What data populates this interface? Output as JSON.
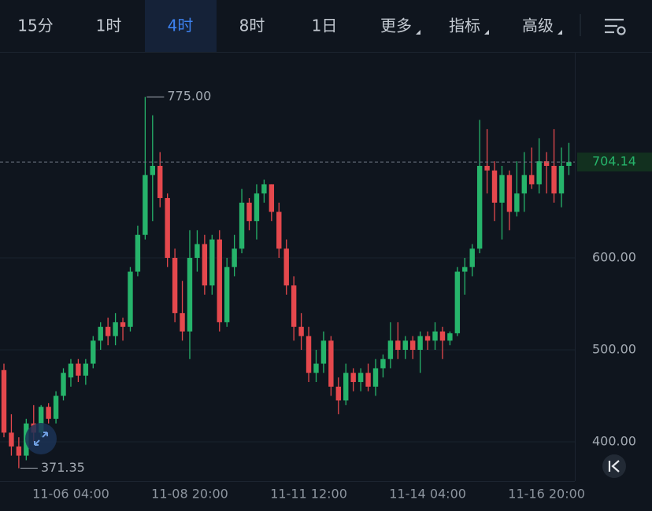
{
  "toolbar": {
    "tabs": [
      {
        "label": "15分",
        "dropdown": false
      },
      {
        "label": "1时",
        "dropdown": false
      },
      {
        "label": "4时",
        "dropdown": false
      },
      {
        "label": "8时",
        "dropdown": false
      },
      {
        "label": "1日",
        "dropdown": false
      },
      {
        "label": "更多",
        "dropdown": true
      },
      {
        "label": "指标",
        "dropdown": true
      },
      {
        "label": "高级",
        "dropdown": true
      }
    ],
    "active": 2
  },
  "chart_data": {
    "type": "candlestick",
    "categories": [
      null,
      null,
      null,
      null,
      null,
      null,
      null,
      null,
      null,
      "11-06 04:00",
      null,
      null,
      null,
      null,
      null,
      null,
      null,
      null,
      null,
      null,
      null,
      null,
      null,
      null,
      null,
      "11-08 20:00",
      null,
      null,
      null,
      null,
      null,
      null,
      null,
      null,
      null,
      null,
      null,
      null,
      null,
      null,
      null,
      "11-11 12:00",
      null,
      null,
      null,
      null,
      null,
      null,
      null,
      null,
      null,
      null,
      null,
      null,
      null,
      null,
      null,
      "11-14 04:00",
      null,
      null,
      null,
      null,
      null,
      null,
      null,
      null,
      null,
      null,
      null,
      null,
      null,
      null,
      null,
      "11-16 20:00",
      null,
      null,
      null
    ],
    "open": [
      478,
      410,
      395,
      385,
      420,
      410,
      438,
      425,
      450,
      470,
      485,
      472,
      485,
      510,
      525,
      515,
      530,
      525,
      585,
      625,
      690,
      700,
      665,
      600,
      540,
      520,
      600,
      615,
      570,
      620,
      530,
      590,
      610,
      660,
      640,
      670,
      680,
      650,
      610,
      570,
      525,
      515,
      475,
      485,
      510,
      460,
      445,
      475,
      465,
      475,
      460,
      480,
      490,
      510,
      500,
      510,
      500,
      515,
      510,
      520,
      510,
      518,
      585,
      590,
      610,
      700,
      695,
      660,
      690,
      650,
      670,
      690,
      680,
      705,
      700,
      670,
      700
    ],
    "high": [
      485,
      430,
      405,
      425,
      440,
      440,
      442,
      455,
      480,
      490,
      490,
      490,
      515,
      530,
      535,
      540,
      535,
      590,
      635,
      775,
      755,
      715,
      670,
      610,
      575,
      630,
      630,
      625,
      625,
      630,
      600,
      625,
      675,
      665,
      680,
      685,
      680,
      660,
      620,
      580,
      540,
      525,
      500,
      520,
      515,
      470,
      485,
      480,
      480,
      485,
      490,
      495,
      530,
      530,
      515,
      515,
      520,
      520,
      530,
      525,
      520,
      590,
      600,
      615,
      750,
      740,
      705,
      700,
      695,
      705,
      715,
      720,
      730,
      715,
      740,
      720,
      725
    ],
    "low": [
      405,
      385,
      371.35,
      380,
      400,
      405,
      420,
      420,
      445,
      460,
      465,
      462,
      480,
      500,
      505,
      505,
      510,
      520,
      580,
      620,
      640,
      655,
      590,
      530,
      510,
      490,
      585,
      560,
      560,
      520,
      525,
      580,
      605,
      630,
      620,
      660,
      640,
      600,
      560,
      510,
      500,
      465,
      465,
      475,
      450,
      430,
      440,
      455,
      455,
      455,
      450,
      470,
      480,
      490,
      490,
      490,
      475,
      500,
      500,
      490,
      505,
      515,
      560,
      580,
      605,
      670,
      640,
      620,
      630,
      645,
      650,
      675,
      670,
      670,
      660,
      655,
      690
    ],
    "close": [
      410,
      395,
      385,
      420,
      410,
      438,
      425,
      450,
      475,
      485,
      472,
      485,
      510,
      525,
      515,
      530,
      525,
      585,
      625,
      690,
      700,
      665,
      600,
      540,
      520,
      600,
      615,
      570,
      620,
      530,
      590,
      610,
      660,
      640,
      670,
      680,
      650,
      610,
      570,
      525,
      515,
      475,
      485,
      510,
      460,
      445,
      475,
      465,
      475,
      460,
      480,
      490,
      510,
      500,
      510,
      500,
      515,
      510,
      520,
      510,
      518,
      585,
      590,
      610,
      700,
      695,
      660,
      690,
      650,
      670,
      690,
      680,
      705,
      700,
      670,
      700,
      704.14
    ],
    "up_color": "#26b46b",
    "down_color": "#e5484d",
    "ylim": [
      357.3,
      822.2
    ],
    "yticks": [
      {
        "value": 400,
        "label": "400.00"
      },
      {
        "value": 500,
        "label": "500.00"
      },
      {
        "value": 600,
        "label": "600.00"
      }
    ],
    "grid": true,
    "annotations": [
      {
        "value": 775,
        "label": "775.00"
      },
      {
        "value": 371.35,
        "label": "371.35"
      }
    ],
    "last_price": {
      "value": 704.14,
      "label": "704.14"
    }
  }
}
